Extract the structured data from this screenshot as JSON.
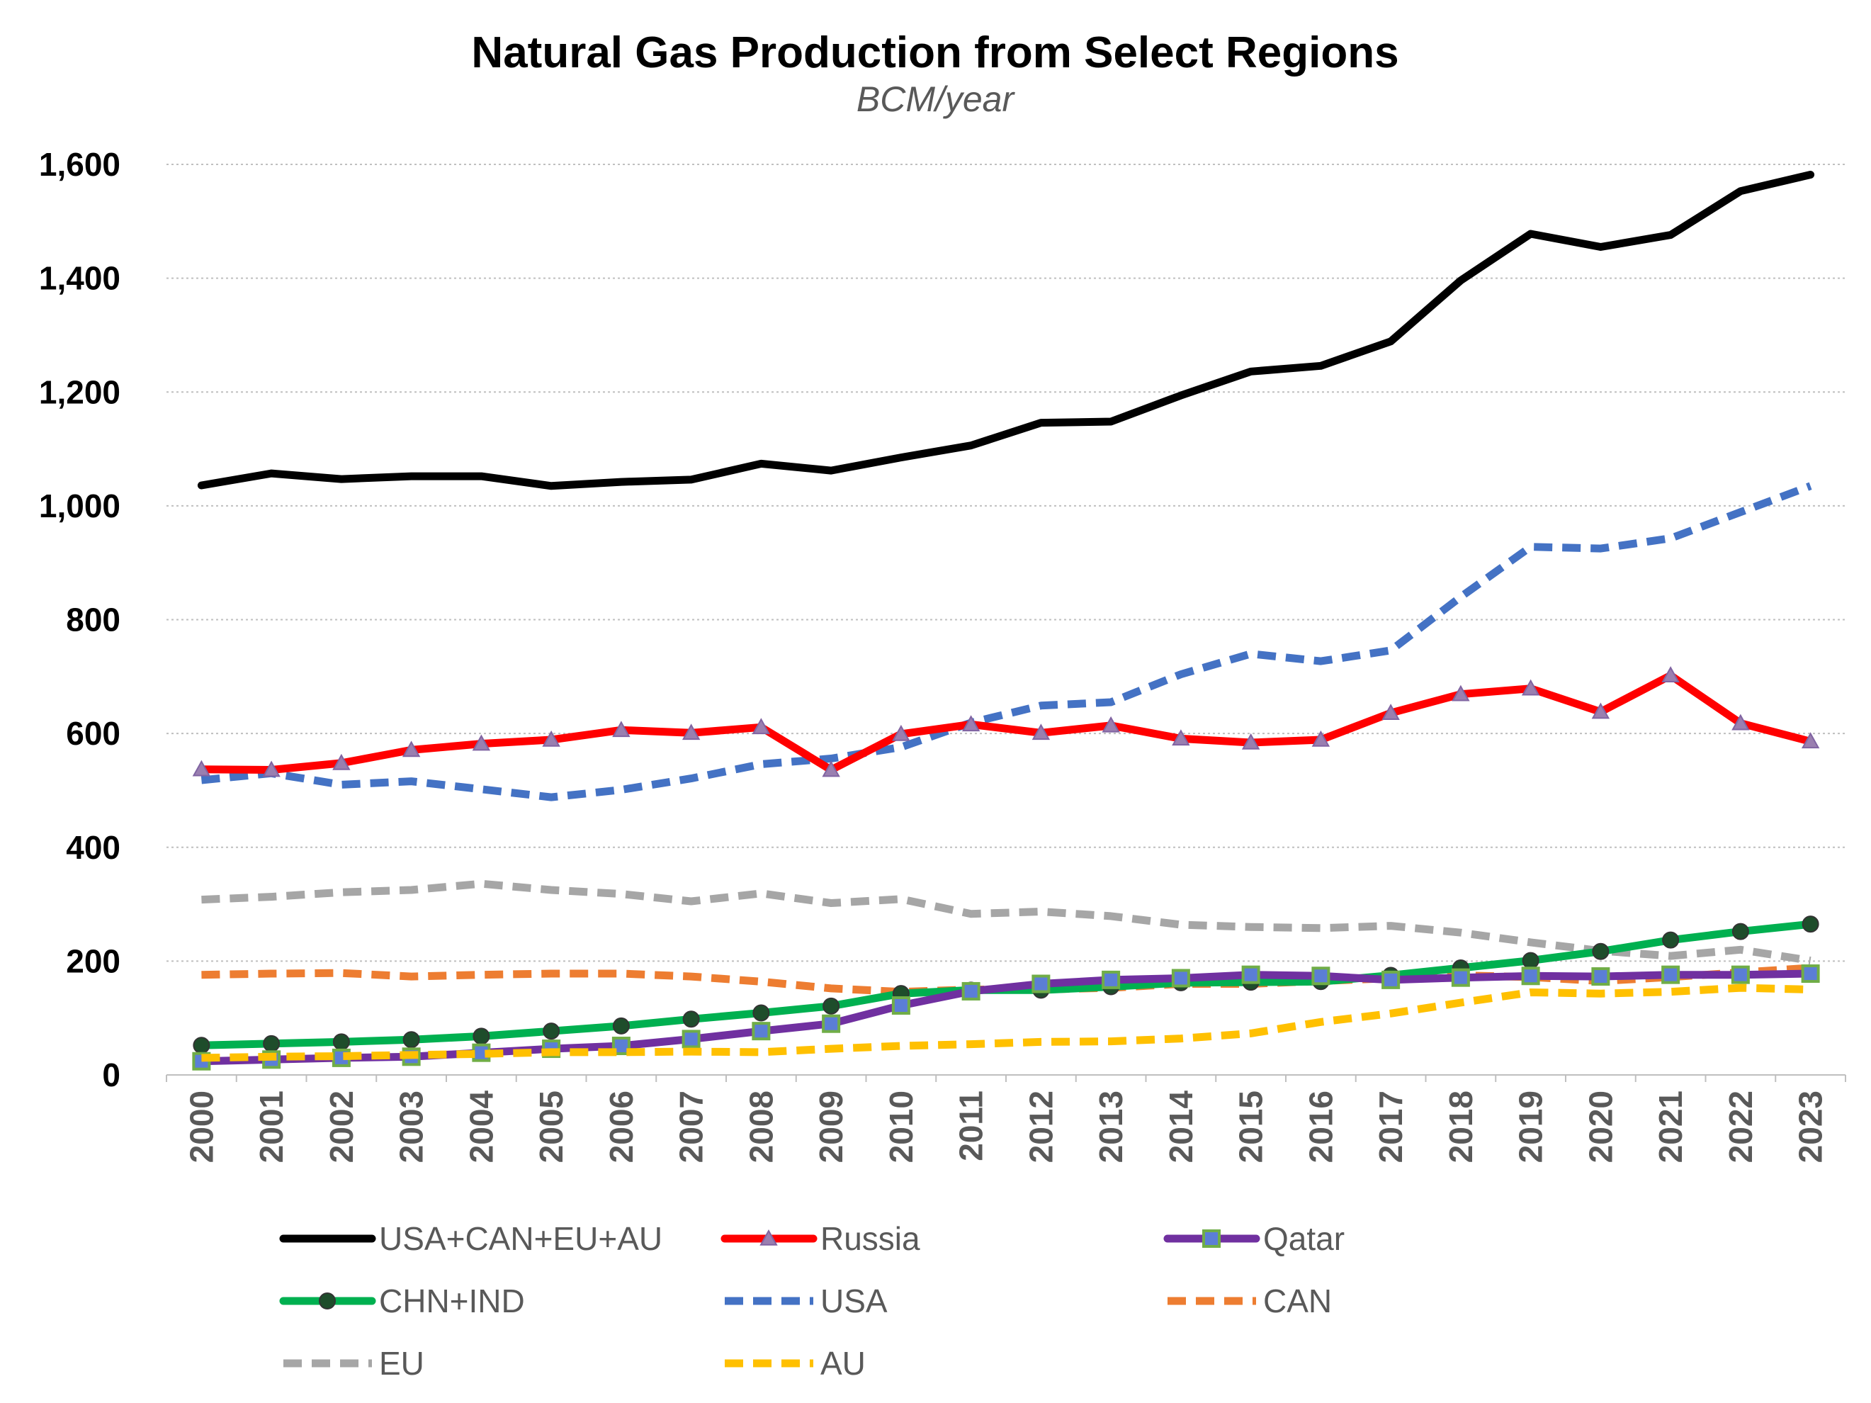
{
  "chart_data": {
    "type": "line",
    "title": "Natural Gas Production from Select Regions",
    "subtitle": "BCM/year",
    "xlabel": "",
    "ylabel": "",
    "ylim": [
      0,
      1600
    ],
    "yticks": [
      0,
      200,
      400,
      600,
      800,
      1000,
      1200,
      1400,
      1600
    ],
    "ytick_labels": [
      "0",
      "200",
      "400",
      "600",
      "800",
      "1,000",
      "1,200",
      "1,400",
      "1,600"
    ],
    "grid": true,
    "legend_position": "bottom",
    "categories": [
      "2000",
      "2001",
      "2002",
      "2003",
      "2004",
      "2005",
      "2006",
      "2007",
      "2008",
      "2009",
      "2010",
      "2011",
      "2012",
      "2013",
      "2014",
      "2015",
      "2016",
      "2017",
      "2018",
      "2019",
      "2020",
      "2021",
      "2022",
      "2023"
    ],
    "series": [
      {
        "name": "USA+CAN+EU+AU",
        "color": "#000000",
        "dash": "solid",
        "marker": "none",
        "values": [
          1036,
          1057,
          1047,
          1052,
          1052,
          1035,
          1042,
          1046,
          1074,
          1062,
          1085,
          1106,
          1146,
          1148,
          1194,
          1236,
          1246,
          1289,
          1396,
          1478,
          1455,
          1476,
          1553,
          1582
        ]
      },
      {
        "name": "Russia",
        "color": "#ff0000",
        "dash": "solid",
        "marker": "triangle",
        "marker_fill": "#9a7fb0",
        "values": [
          537,
          536,
          548,
          571,
          582,
          589,
          606,
          601,
          611,
          536,
          599,
          616,
          601,
          614,
          591,
          584,
          589,
          636,
          669,
          679,
          638,
          702,
          618,
          586
        ]
      },
      {
        "name": "Qatar",
        "color": "#7030a0",
        "dash": "solid",
        "marker": "square",
        "marker_fill": "#5b7ed6",
        "values": [
          24,
          27,
          30,
          32,
          39,
          46,
          51,
          63,
          77,
          90,
          122,
          147,
          160,
          167,
          170,
          176,
          174,
          167,
          171,
          174,
          173,
          176,
          176,
          178
        ]
      },
      {
        "name": "CHN+IND",
        "color": "#00b050",
        "dash": "solid",
        "marker": "circle",
        "marker_fill": "#1e4d2b",
        "values": [
          52,
          55,
          58,
          62,
          68,
          77,
          86,
          98,
          109,
          121,
          143,
          149,
          149,
          155,
          162,
          163,
          164,
          175,
          188,
          201,
          217,
          237,
          252,
          265
        ]
      },
      {
        "name": "USA",
        "color": "#4472c4",
        "dash": "dashed",
        "marker": "none",
        "values": [
          518,
          530,
          510,
          516,
          502,
          488,
          501,
          521,
          546,
          556,
          576,
          619,
          649,
          655,
          704,
          740,
          727,
          746,
          840,
          928,
          925,
          943,
          989,
          1035
        ]
      },
      {
        "name": "CAN",
        "color": "#ed7d31",
        "dash": "dashed",
        "marker": "none",
        "values": [
          176,
          178,
          179,
          173,
          176,
          178,
          178,
          173,
          164,
          152,
          146,
          150,
          150,
          153,
          160,
          160,
          165,
          170,
          175,
          172,
          165,
          172,
          180,
          188
        ]
      },
      {
        "name": "EU",
        "color": "#a6a6a6",
        "dash": "dashed",
        "marker": "none",
        "values": [
          308,
          313,
          321,
          325,
          336,
          325,
          318,
          305,
          319,
          302,
          309,
          283,
          287,
          279,
          264,
          260,
          258,
          262,
          250,
          233,
          218,
          209,
          220,
          201
        ]
      },
      {
        "name": "AU",
        "color": "#ffc000",
        "dash": "dashed",
        "marker": "none",
        "values": [
          30,
          32,
          33,
          35,
          37,
          40,
          40,
          41,
          40,
          46,
          51,
          54,
          58,
          59,
          64,
          73,
          93,
          108,
          127,
          145,
          143,
          146,
          153,
          150
        ]
      }
    ]
  }
}
